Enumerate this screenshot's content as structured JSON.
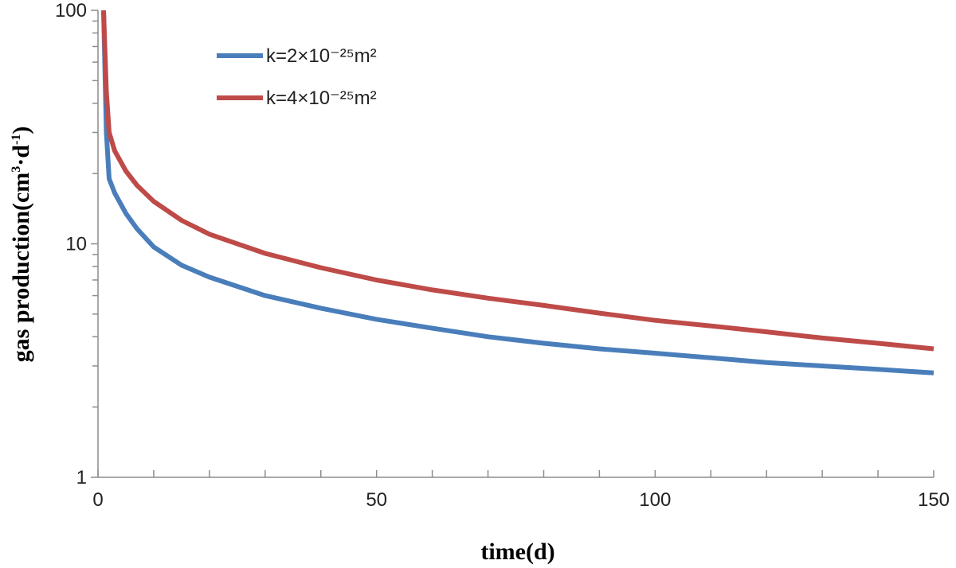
{
  "chart_data": {
    "type": "line",
    "title": "",
    "xlabel": "time(d)",
    "ylabel": "gas production(cm³·d⁻¹)",
    "ylabel_parts": {
      "base": "gas production(cm",
      "sup1": "3",
      "mid": "·d",
      "sup2": "-1",
      "end": ")"
    },
    "xlim": [
      0,
      150
    ],
    "ylim": [
      1,
      100
    ],
    "yscale": "log",
    "x_ticks": [
      0,
      50,
      100,
      150
    ],
    "x_tick_labels": [
      "0",
      "50",
      "100",
      "150"
    ],
    "x_minor_step": 10,
    "y_ticks": [
      1,
      10,
      100
    ],
    "y_tick_labels": [
      "1",
      "10",
      "100"
    ],
    "grid": false,
    "legend_position": "top-left",
    "series": [
      {
        "name": "k=2×10⁻²⁵m²",
        "color": "#4a7ebb",
        "x": [
          1,
          1.5,
          2,
          3,
          5,
          7,
          10,
          15,
          20,
          30,
          40,
          50,
          60,
          70,
          80,
          90,
          100,
          110,
          120,
          130,
          140,
          150
        ],
        "y": [
          100,
          30,
          19,
          16.5,
          13.5,
          11.6,
          9.7,
          8.1,
          7.2,
          6.0,
          5.3,
          4.75,
          4.35,
          4.0,
          3.75,
          3.55,
          3.4,
          3.25,
          3.1,
          3.0,
          2.9,
          2.8
        ]
      },
      {
        "name": "k=4×10⁻²⁵m²",
        "color": "#be4b48",
        "x": [
          1,
          1.5,
          2,
          3,
          5,
          7,
          10,
          15,
          20,
          30,
          40,
          50,
          60,
          70,
          80,
          90,
          100,
          110,
          120,
          130,
          140,
          150
        ],
        "y": [
          100,
          45,
          30,
          25,
          20.5,
          17.8,
          15.2,
          12.6,
          11.0,
          9.1,
          7.9,
          7.0,
          6.35,
          5.85,
          5.45,
          5.05,
          4.7,
          4.45,
          4.2,
          3.95,
          3.75,
          3.55
        ]
      }
    ]
  }
}
